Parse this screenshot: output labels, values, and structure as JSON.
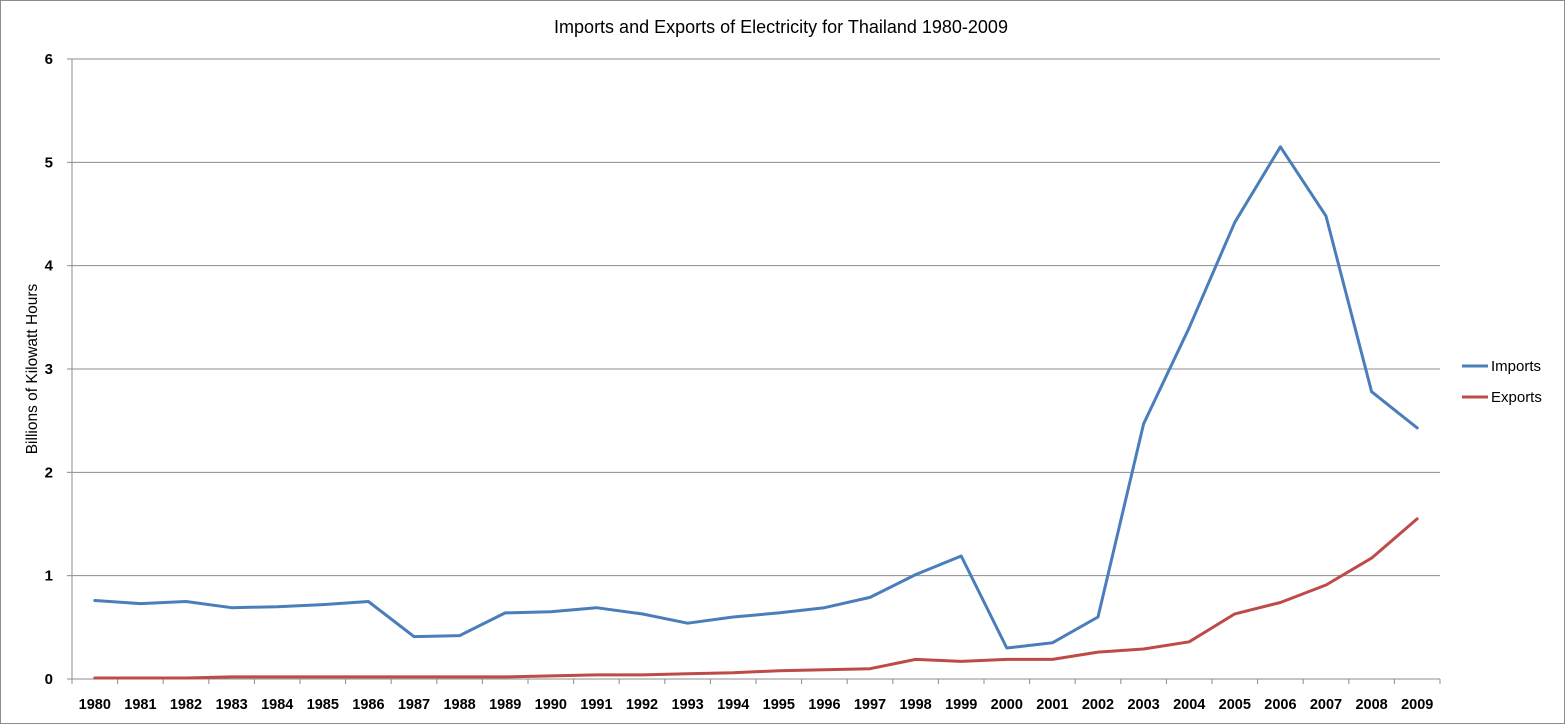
{
  "chart_data": {
    "type": "line",
    "title": "Imports and Exports of Electricity  for Thailand 1980-2009",
    "xlabel": "",
    "ylabel": "Billions of Kilowatt Hours",
    "ylim": [
      0,
      6
    ],
    "yticks": [
      "0",
      "1",
      "2",
      "3",
      "4",
      "5",
      "6"
    ],
    "grid": true,
    "legend_position": "right",
    "categories": [
      "1980",
      "1981",
      "1982",
      "1983",
      "1984",
      "1985",
      "1986",
      "1987",
      "1988",
      "1989",
      "1990",
      "1991",
      "1992",
      "1993",
      "1994",
      "1995",
      "1996",
      "1997",
      "1998",
      "1999",
      "2000",
      "2001",
      "2002",
      "2003",
      "2004",
      "2005",
      "2006",
      "2007",
      "2008",
      "2009"
    ],
    "series": [
      {
        "name": "Imports",
        "color": "#4a7ebb",
        "values": [
          0.76,
          0.73,
          0.75,
          0.69,
          0.7,
          0.72,
          0.75,
          0.41,
          0.42,
          0.64,
          0.65,
          0.69,
          0.63,
          0.54,
          0.6,
          0.64,
          0.69,
          0.79,
          1.01,
          1.19,
          0.3,
          0.35,
          0.6,
          2.47,
          3.4,
          4.42,
          5.15,
          4.48,
          2.78,
          2.43
        ]
      },
      {
        "name": "Exports",
        "color": "#be4b48",
        "values": [
          0.01,
          0.01,
          0.01,
          0.02,
          0.02,
          0.02,
          0.02,
          0.02,
          0.02,
          0.02,
          0.03,
          0.04,
          0.04,
          0.05,
          0.06,
          0.08,
          0.09,
          0.1,
          0.19,
          0.17,
          0.19,
          0.19,
          0.26,
          0.29,
          0.36,
          0.63,
          0.74,
          0.91,
          1.17,
          1.55
        ]
      }
    ]
  }
}
